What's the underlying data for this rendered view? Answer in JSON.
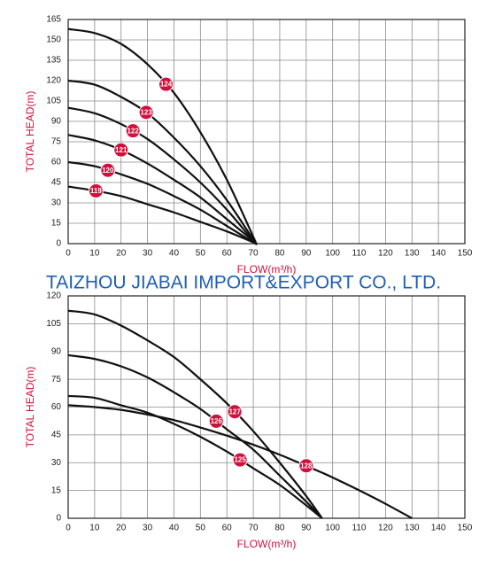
{
  "watermark": "TAIZHOU JIABAI IMPORT&EXPORT CO., LTD.",
  "chart_data": [
    {
      "type": "line",
      "x_label": "FLOW(m³/h)",
      "y_label": "TOTAL HEAD(m)",
      "x": [
        0,
        10,
        20,
        30,
        40,
        50,
        60,
        70,
        71
      ],
      "xlim": [
        0,
        150
      ],
      "xticks": [
        0,
        10,
        20,
        30,
        40,
        50,
        60,
        70,
        80,
        90,
        100,
        110,
        120,
        130,
        140,
        150
      ],
      "ylim": [
        0,
        165
      ],
      "yticks": [
        0,
        15,
        30,
        45,
        60,
        75,
        90,
        105,
        120,
        135,
        150,
        165
      ],
      "grid": true,
      "series": [
        {
          "name": "124",
          "color": "#111111",
          "values": [
            158,
            155,
            147,
            132,
            111,
            82,
            47,
            5,
            0
          ]
        },
        {
          "name": "123",
          "color": "#111111",
          "values": [
            120,
            117,
            108,
            96,
            78,
            57,
            32,
            3,
            0
          ]
        },
        {
          "name": "122",
          "color": "#111111",
          "values": [
            100,
            96,
            88,
            77,
            62,
            45,
            25,
            2,
            0
          ]
        },
        {
          "name": "121",
          "color": "#111111",
          "values": [
            80,
            76,
            69,
            59,
            47,
            34,
            18,
            2,
            0
          ]
        },
        {
          "name": "120",
          "color": "#111111",
          "values": [
            60,
            57,
            51,
            44,
            35,
            25,
            13,
            1,
            0
          ]
        },
        {
          "name": "119",
          "color": "#111111",
          "values": [
            42,
            39,
            35,
            29,
            23,
            16,
            9,
            1,
            0
          ]
        }
      ]
    },
    {
      "type": "line",
      "x_label": "FLOW(m³/h)",
      "y_label": "TOTAL HEAD(m)",
      "x": [
        0,
        10,
        20,
        30,
        40,
        50,
        60,
        70,
        80,
        90,
        96,
        100,
        110,
        120,
        130
      ],
      "xlim": [
        0,
        150
      ],
      "xticks": [
        0,
        10,
        20,
        30,
        40,
        50,
        60,
        70,
        80,
        90,
        100,
        110,
        120,
        130,
        140,
        150
      ],
      "ylim": [
        0,
        120
      ],
      "yticks": [
        0,
        15,
        30,
        45,
        60,
        75,
        90,
        105,
        120
      ],
      "grid": true,
      "series": [
        {
          "name": "127",
          "color": "#111111",
          "values": [
            112,
            110,
            104,
            96,
            87,
            75,
            62,
            47,
            30,
            12,
            0,
            null,
            null,
            null,
            null
          ]
        },
        {
          "name": "126",
          "color": "#111111",
          "values": [
            88,
            86,
            82,
            76,
            68,
            59,
            48,
            37,
            23,
            9,
            0,
            null,
            null,
            null,
            null
          ]
        },
        {
          "name": "125",
          "color": "#111111",
          "values": [
            66,
            65,
            61,
            57,
            51,
            44,
            36,
            27,
            18,
            7,
            0,
            null,
            null,
            null,
            null
          ]
        },
        {
          "name": "128",
          "color": "#111111",
          "values": [
            61,
            60,
            58.5,
            56,
            53,
            49,
            44.6,
            39.7,
            34.3,
            28.3,
            24.6,
            22,
            15.1,
            7.8,
            0
          ]
        }
      ]
    }
  ]
}
